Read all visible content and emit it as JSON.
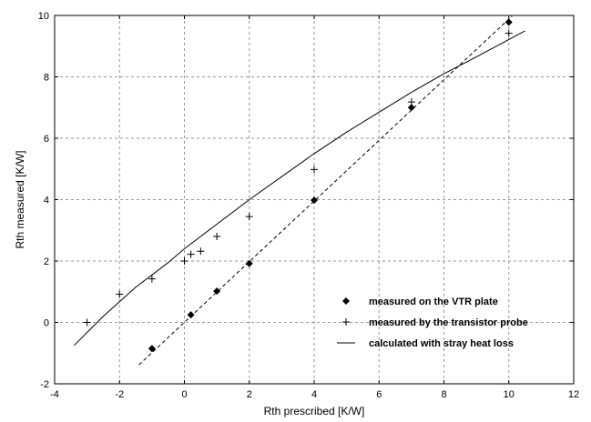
{
  "chart_data": {
    "type": "scatter",
    "xlabel": "Rth prescribed  [K/W]",
    "ylabel": "Rth measured  [K/W]",
    "xlim": [
      -4,
      12
    ],
    "ylim": [
      -2,
      10
    ],
    "xticks": [
      -4,
      -2,
      0,
      2,
      4,
      6,
      8,
      10,
      12
    ],
    "yticks": [
      -2,
      0,
      2,
      4,
      6,
      8,
      10
    ],
    "grid": true,
    "legend_position": "bottom-right",
    "series": [
      {
        "name": "measured on the VTR plate",
        "marker": "diamond",
        "color": "#000000",
        "points": [
          [
            -1,
            -0.85
          ],
          [
            0.2,
            0.25
          ],
          [
            1,
            1.02
          ],
          [
            2,
            1.92
          ],
          [
            4,
            3.98
          ],
          [
            7,
            7.0
          ],
          [
            10,
            9.78
          ]
        ]
      },
      {
        "name": "measured by the transistor probe",
        "marker": "plus",
        "color": "#000000",
        "points": [
          [
            -3,
            0.0
          ],
          [
            -2,
            0.92
          ],
          [
            -1,
            1.42
          ],
          [
            0,
            2.0
          ],
          [
            0.2,
            2.22
          ],
          [
            0.5,
            2.32
          ],
          [
            1,
            2.8
          ],
          [
            2,
            3.45
          ],
          [
            4,
            4.98
          ],
          [
            7,
            7.18
          ],
          [
            10,
            9.42
          ]
        ]
      },
      {
        "name": "calculated with stray heat loss",
        "style": "solid-line",
        "color": "#000000",
        "points": [
          [
            -3.4,
            -0.75
          ],
          [
            -2.5,
            0.2
          ],
          [
            -1.5,
            1.15
          ],
          [
            -0.5,
            1.95
          ],
          [
            0,
            2.4
          ],
          [
            1,
            3.2
          ],
          [
            2,
            4.0
          ],
          [
            3,
            4.75
          ],
          [
            4,
            5.5
          ],
          [
            5,
            6.2
          ],
          [
            6,
            6.85
          ],
          [
            7,
            7.5
          ],
          [
            8,
            8.1
          ],
          [
            9,
            8.65
          ],
          [
            10.5,
            9.5
          ]
        ]
      },
      {
        "name": "",
        "style": "dashed-line",
        "color": "#000000",
        "points": [
          [
            -1.4,
            -1.38
          ],
          [
            10.1,
            9.98
          ]
        ]
      }
    ]
  }
}
